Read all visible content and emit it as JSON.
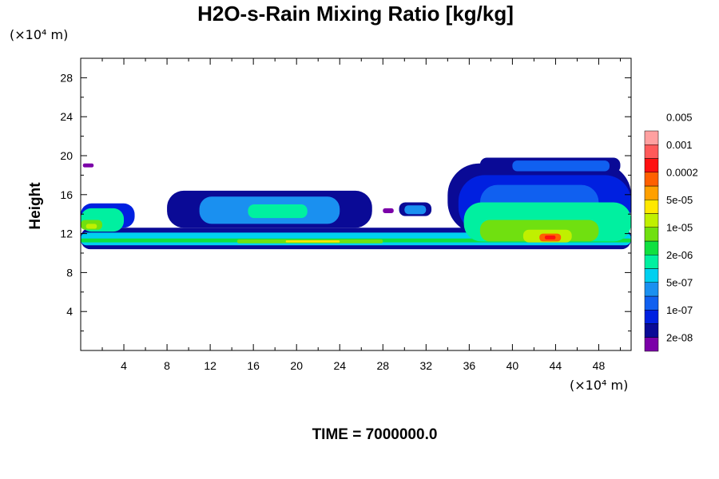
{
  "chart_data": {
    "type": "heatmap",
    "title": "H2O-s-Rain Mixing Ratio [kg/kg]",
    "ylabel": "Height",
    "x_unit": "(×10⁴ m)",
    "y_unit": "(×10⁴ m)",
    "xlim": [
      0,
      51
    ],
    "ylim": [
      0,
      30
    ],
    "x_ticks": [
      4,
      8,
      12,
      16,
      20,
      24,
      28,
      32,
      36,
      40,
      44,
      48
    ],
    "y_ticks": [
      4,
      8,
      12,
      16,
      20,
      24,
      28
    ],
    "footer": "TIME = 7000000.0",
    "colorbar": {
      "colors": [
        "#7b00a8",
        "#0a0a96",
        "#0020e0",
        "#1060f0",
        "#1a90f0",
        "#00d0f0",
        "#00f0a0",
        "#10e040",
        "#70e010",
        "#c0f000",
        "#ffe800",
        "#ffa000",
        "#ff6000",
        "#ff1010",
        "#ff5a5a",
        "#ffa0a0"
      ],
      "tick_labels": [
        "2e-08",
        "1e-07",
        "5e-07",
        "2e-06",
        "1e-05",
        "5e-05",
        "0.0002",
        "0.001",
        "0.005"
      ]
    },
    "regions": [
      {
        "level": 1,
        "x": [
          0.0,
          51.0
        ],
        "y": [
          10.4,
          12.6
        ]
      },
      {
        "level": 5,
        "x": [
          0.0,
          51.0
        ],
        "y": [
          10.8,
          12.1
        ]
      },
      {
        "level": 7,
        "x": [
          0.0,
          51.0
        ],
        "y": [
          11.1,
          11.5
        ]
      },
      {
        "level": 8,
        "x": [
          14.5,
          28.0
        ],
        "y": [
          11.0,
          11.4
        ]
      },
      {
        "level": 10,
        "x": [
          19.0,
          24.0
        ],
        "y": [
          11.1,
          11.3
        ]
      },
      {
        "level": 2,
        "x": [
          0.0,
          5.0
        ],
        "y": [
          12.6,
          15.1
        ]
      },
      {
        "level": 6,
        "x": [
          0.0,
          4.0
        ],
        "y": [
          12.2,
          14.6
        ]
      },
      {
        "level": 8,
        "x": [
          0.0,
          2.0
        ],
        "y": [
          12.4,
          13.4
        ]
      },
      {
        "level": 9,
        "x": [
          0.5,
          1.5
        ],
        "y": [
          12.5,
          13.0
        ]
      },
      {
        "level": 1,
        "x": [
          8.0,
          27.0
        ],
        "y": [
          12.6,
          16.4
        ]
      },
      {
        "level": 4,
        "x": [
          11.0,
          24.0
        ],
        "y": [
          13.0,
          15.8
        ]
      },
      {
        "level": 6,
        "x": [
          15.5,
          21.0
        ],
        "y": [
          13.6,
          15.0
        ]
      },
      {
        "level": 1,
        "x": [
          29.5,
          32.5
        ],
        "y": [
          13.8,
          15.2
        ]
      },
      {
        "level": 4,
        "x": [
          30.0,
          32.0
        ],
        "y": [
          14.0,
          14.9
        ]
      },
      {
        "level": 1,
        "x": [
          34.0,
          51.0
        ],
        "y": [
          12.0,
          19.2
        ]
      },
      {
        "level": 2,
        "x": [
          35.0,
          51.0
        ],
        "y": [
          12.0,
          18.0
        ]
      },
      {
        "level": 3,
        "x": [
          37.0,
          48.0
        ],
        "y": [
          13.0,
          17.0
        ]
      },
      {
        "level": 6,
        "x": [
          35.5,
          51.0
        ],
        "y": [
          11.2,
          15.2
        ]
      },
      {
        "level": 8,
        "x": [
          37.0,
          48.0
        ],
        "y": [
          11.2,
          13.4
        ]
      },
      {
        "level": 9,
        "x": [
          41.0,
          45.5
        ],
        "y": [
          11.1,
          12.4
        ]
      },
      {
        "level": 12,
        "x": [
          42.5,
          44.5
        ],
        "y": [
          11.2,
          12.0
        ]
      },
      {
        "level": 13,
        "x": [
          43.0,
          44.0
        ],
        "y": [
          11.4,
          11.8
        ]
      },
      {
        "level": 1,
        "x": [
          37.0,
          50.0
        ],
        "y": [
          18.2,
          19.8
        ]
      },
      {
        "level": 3,
        "x": [
          40.0,
          49.0
        ],
        "y": [
          18.4,
          19.5
        ]
      },
      {
        "level": 0,
        "x": [
          0.2,
          1.2
        ],
        "y": [
          18.8,
          19.2
        ]
      },
      {
        "level": 0,
        "x": [
          28.0,
          29.0
        ],
        "y": [
          14.1,
          14.6
        ]
      }
    ]
  }
}
